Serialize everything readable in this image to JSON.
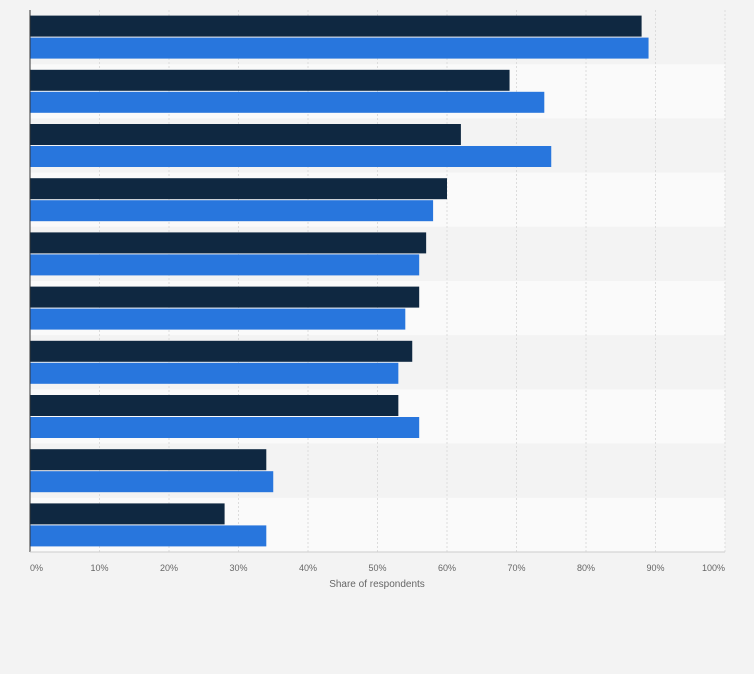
{
  "chart_data": {
    "type": "bar",
    "orientation": "horizontal",
    "title": "",
    "xlabel": "Share of respondents",
    "ylabel": "",
    "xlim": [
      0,
      100
    ],
    "x_ticks": [
      "0%",
      "10%",
      "20%",
      "30%",
      "40%",
      "50%",
      "60%",
      "70%",
      "80%",
      "90%",
      "100%"
    ],
    "grid": true,
    "legend": "none",
    "categories": [
      "",
      "",
      "",
      "",
      "",
      "",
      "",
      "",
      "",
      ""
    ],
    "series": [
      {
        "color": "#0f2841",
        "values": [
          88,
          69,
          62,
          60,
          57,
          56,
          55,
          53,
          34,
          28
        ]
      },
      {
        "color": "#2876dd",
        "values": [
          89,
          74,
          75,
          58,
          56,
          54,
          53,
          56,
          35,
          34
        ]
      }
    ]
  }
}
